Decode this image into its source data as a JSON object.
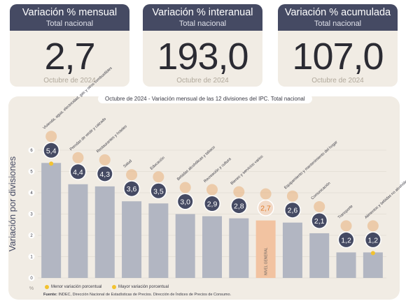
{
  "kpis": [
    {
      "title": "Variación % mensual",
      "subtitle": "Total nacional",
      "value": "2,7",
      "date": "Octubre de 2024"
    },
    {
      "title": "Variación % interanual",
      "subtitle": "Total nacional",
      "value": "193,0",
      "date": "Octubre de 2024"
    },
    {
      "title": "Variación % acumulada",
      "subtitle": "Total nacional",
      "value": "107,0",
      "date": "Octubre de 2024"
    }
  ],
  "legend": {
    "min_label": "Menor variación porcentual",
    "max_label": "Mayor variación porcentual"
  },
  "source": {
    "prefix": "Fuente:",
    "text": "INDEC, Dirección Nacional de Estadísticas de Precios. Dirección de Índices de Precios de Consumo."
  },
  "colors": {
    "bar": "#b2b6c2",
    "general_bar": "#f2c3a1",
    "highlight": "#f2c230",
    "badge": "#454a63",
    "panel": "#f1ece4",
    "header": "#454a63"
  },
  "chart_data": {
    "type": "bar",
    "title": "Octubre de 2024 - Variación mensual de las 12 divisiones del IPC. Total nacional",
    "ylabel": "Variación por divisiones",
    "unit": "%",
    "ylim": [
      0,
      6
    ],
    "yticks": [
      0,
      1,
      2,
      3,
      4,
      5,
      6
    ],
    "categories": [
      "Vivienda, agua, electricidad, gas y otros combustibles",
      "Prendas de vestir y calzado",
      "Restaurantes y hoteles",
      "Salud",
      "Educación",
      "Bebidas alcohólicas y tabaco",
      "Recreación y cultura",
      "Bienes y servicios varios",
      "NIVEL GENERAL",
      "Equipamiento y mantenimiento del hogar",
      "Comunicación",
      "Transporte",
      "Alimentos y bebidas no alcohólicas"
    ],
    "values": [
      5.4,
      4.4,
      4.3,
      3.6,
      3.5,
      3.0,
      2.9,
      2.8,
      2.7,
      2.6,
      2.1,
      1.2,
      1.2
    ],
    "value_labels": [
      "5,4",
      "4,4",
      "4,3",
      "3,6",
      "3,5",
      "3,0",
      "2,9",
      "2,8",
      "2,7",
      "2,6",
      "2,1",
      "1,2",
      "1,2"
    ],
    "icons": [
      "house-bulb-icon",
      "tshirt-icon",
      "restaurant-icon",
      "health-cross-icon",
      "book-icon",
      "bottle-icon",
      "bicycle-icon",
      "lipstick-icon",
      "basket-icon",
      "toolbox-icon",
      "phone-icon",
      "bus-icon",
      "food-icon"
    ],
    "general_index": 8,
    "max_index": 0,
    "min_index": 12,
    "grid": true
  }
}
